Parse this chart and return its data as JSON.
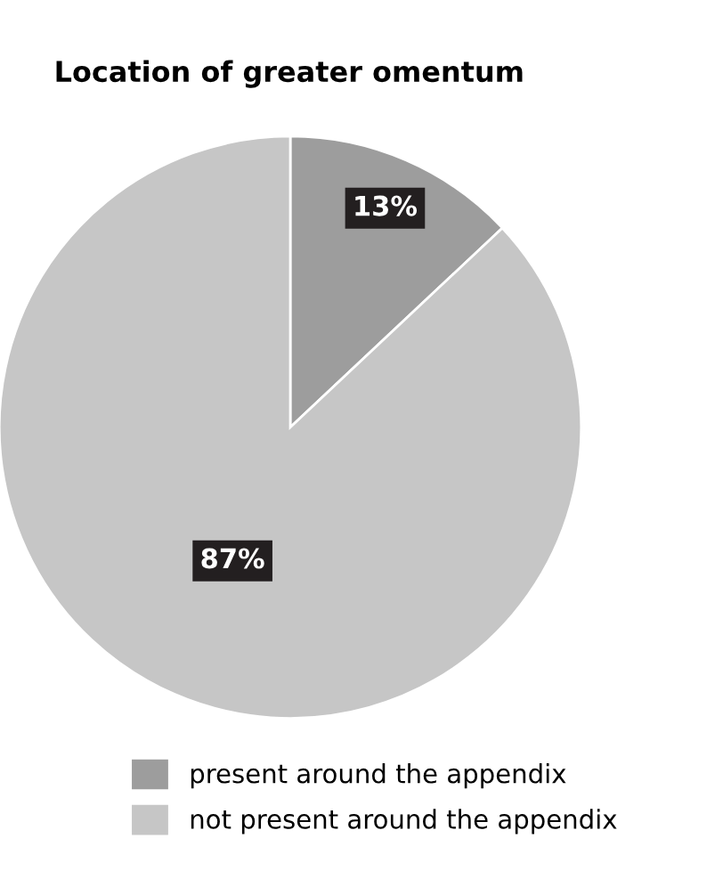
{
  "chart_data": {
    "type": "pie",
    "title": "Location of greater omentum",
    "categories": [
      "present around the appendix",
      "not present around the appendix"
    ],
    "values": [
      13,
      87
    ],
    "colors": [
      "#9d9d9d",
      "#c6c6c6"
    ],
    "value_labels": [
      "13%",
      "87%"
    ],
    "legend": "bottom"
  }
}
